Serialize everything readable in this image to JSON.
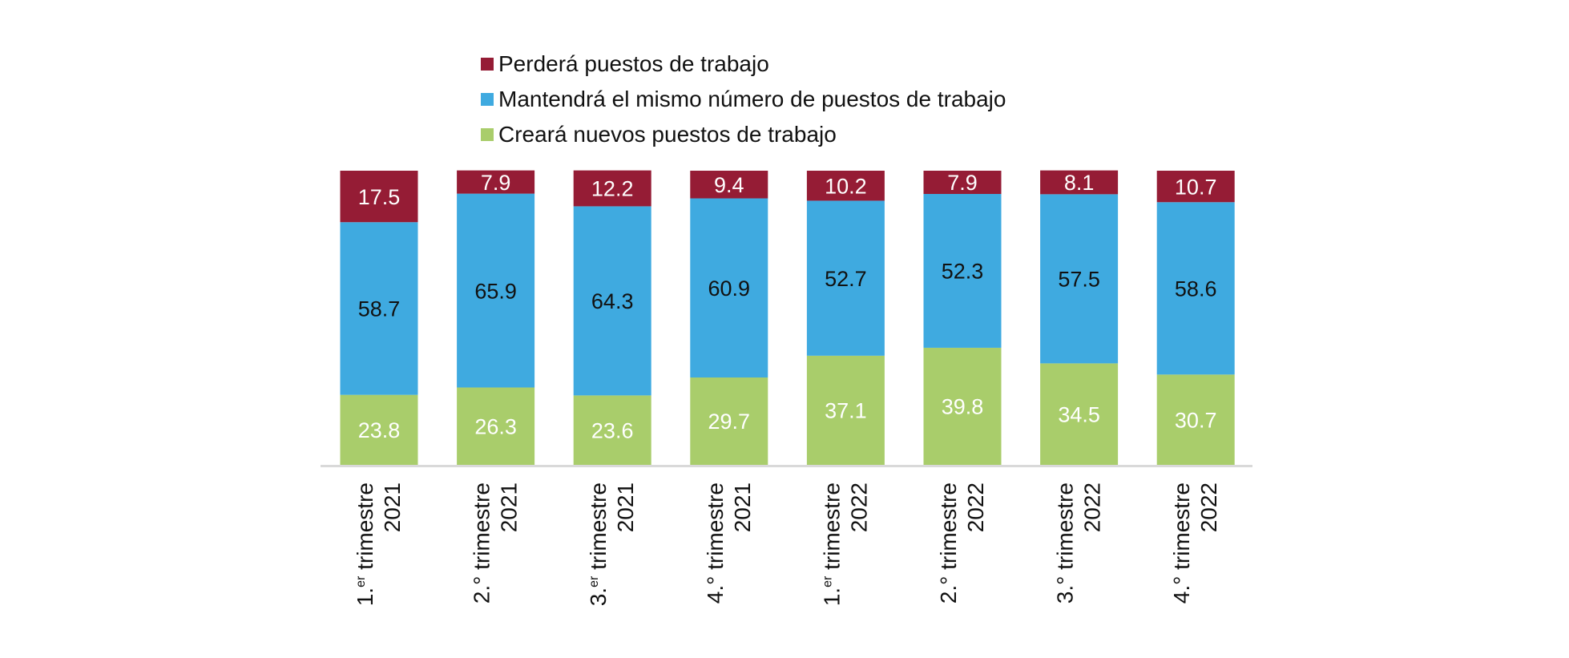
{
  "chart_data": {
    "type": "bar",
    "stacked": true,
    "categories": [
      {
        "line1": "1.er trimestre",
        "line2": "2021",
        "ordinal": "1.",
        "ordinal_sup": "er",
        "word": "trimestre"
      },
      {
        "line1": "2.° trimestre",
        "line2": "2021",
        "ordinal": "2.°",
        "ordinal_sup": "",
        "word": "trimestre"
      },
      {
        "line1": "3.er trimestre",
        "line2": "2021",
        "ordinal": "3.",
        "ordinal_sup": "er",
        "word": "trimestre"
      },
      {
        "line1": "4.° trimestre",
        "line2": "2021",
        "ordinal": "4.°",
        "ordinal_sup": "",
        "word": "trimestre"
      },
      {
        "line1": "1.er trimestre",
        "line2": "2022",
        "ordinal": "1.",
        "ordinal_sup": "er",
        "word": "trimestre"
      },
      {
        "line1": "2.° trimestre",
        "line2": "2022",
        "ordinal": "2.°",
        "ordinal_sup": "",
        "word": "trimestre"
      },
      {
        "line1": "3.° trimestre",
        "line2": "2022",
        "ordinal": "3.°",
        "ordinal_sup": "",
        "word": "trimestre"
      },
      {
        "line1": "4.° trimestre",
        "line2": "2022",
        "ordinal": "4.°",
        "ordinal_sup": "",
        "word": "trimestre"
      }
    ],
    "series": [
      {
        "key": "crear",
        "name": "Creará nuevos puestos de trabajo",
        "color": "#a9cd6b",
        "label_color": "#ffffff",
        "values": [
          23.8,
          26.3,
          23.6,
          29.7,
          37.1,
          39.8,
          34.5,
          30.7
        ]
      },
      {
        "key": "mantener",
        "name": "Mantendrá el mismo número de puestos de trabajo",
        "color": "#3faae0",
        "label_color": "#111111",
        "values": [
          58.7,
          65.9,
          64.3,
          60.9,
          52.7,
          52.3,
          57.5,
          58.6
        ]
      },
      {
        "key": "perder",
        "name": "Perderá puestos de trabajo",
        "color": "#951c35",
        "label_color": "#ffffff",
        "values": [
          17.5,
          7.9,
          12.2,
          9.4,
          10.2,
          7.9,
          8.1,
          10.7
        ]
      }
    ],
    "legend_order": [
      "perder",
      "mantener",
      "crear"
    ],
    "legend_position": "top",
    "ylim": [
      0,
      100
    ],
    "axis_color": "#d9d9d9",
    "title": "",
    "xlabel": "",
    "ylabel": ""
  }
}
